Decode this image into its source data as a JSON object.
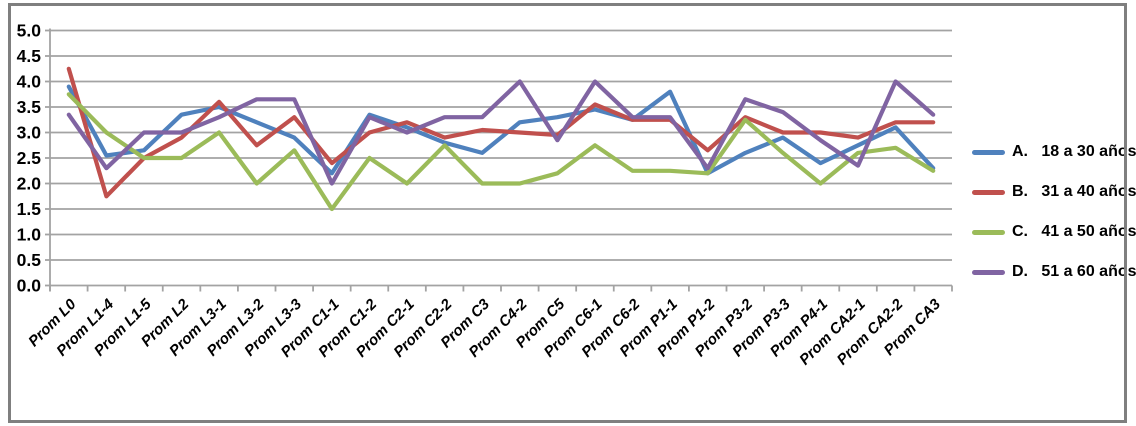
{
  "chart_data": {
    "type": "line",
    "title": "",
    "xlabel": "",
    "ylabel": "",
    "categories": [
      "Prom L0",
      "Prom L1-4",
      "Prom L1-5",
      "Prom L2",
      "Prom L3-1",
      "Prom L3-2",
      "Prom L3-3",
      "Prom C1-1",
      "Prom C1-2",
      "Prom C2-1",
      "Prom C2-2",
      "Prom C3",
      "Prom C4-2",
      "Prom C5",
      "Prom C6-1",
      "Prom C6-2",
      "Prom P1-1",
      "Prom P1-2",
      "Prom P3-2",
      "Prom P3-3",
      "Prom P4-1",
      "Prom CA2-1",
      "Prom CA2-2",
      "Prom CA3"
    ],
    "series": [
      {
        "name": "A.   18 a 30 años",
        "color": "#4f81bd",
        "values": [
          3.9,
          2.55,
          2.65,
          3.35,
          3.5,
          3.2,
          2.9,
          2.2,
          3.35,
          3.1,
          2.8,
          2.6,
          3.2,
          3.3,
          3.45,
          3.25,
          3.8,
          2.2,
          2.6,
          2.9,
          2.4,
          2.75,
          3.1,
          2.3
        ]
      },
      {
        "name": "B.   31 a 40 años",
        "color": "#c0504d",
        "values": [
          4.25,
          1.75,
          2.5,
          2.9,
          3.6,
          2.75,
          3.3,
          2.4,
          3.0,
          3.2,
          2.9,
          3.05,
          3.0,
          2.95,
          3.55,
          3.25,
          3.25,
          2.65,
          3.3,
          3.0,
          3.0,
          2.9,
          3.2,
          3.2
        ]
      },
      {
        "name": "C.   41 a 50 años",
        "color": "#9bbb59",
        "values": [
          3.75,
          3.0,
          2.5,
          2.5,
          3.0,
          2.0,
          2.65,
          1.5,
          2.5,
          2.0,
          2.75,
          2.0,
          2.0,
          2.2,
          2.75,
          2.25,
          2.25,
          2.2,
          3.25,
          2.6,
          2.0,
          2.6,
          2.7,
          2.25
        ]
      },
      {
        "name": "D.   51 a 60 años",
        "color": "#8064a2",
        "values": [
          3.35,
          2.3,
          3.0,
          3.0,
          3.3,
          3.65,
          3.65,
          2.0,
          3.3,
          3.0,
          3.3,
          3.3,
          4.0,
          2.85,
          4.0,
          3.3,
          3.3,
          2.3,
          3.65,
          3.4,
          2.85,
          2.35,
          4.0,
          3.35
        ]
      }
    ],
    "ylim": [
      0.0,
      5.0
    ],
    "ytick_step": 0.5,
    "ytick_labels": [
      "0.0",
      "0.5",
      "1.0",
      "1.5",
      "2.0",
      "2.5",
      "3.0",
      "3.5",
      "4.0",
      "4.5",
      "5.0"
    ],
    "grid": true,
    "legend_position": "right",
    "x_label_rotation_deg": 45
  },
  "style": {
    "grid_color": "#a3a3a3",
    "axis_color": "#a3a3a3",
    "text_color": "#000000",
    "frame_border_color": "#7f7f7f",
    "background": "#ffffff"
  }
}
